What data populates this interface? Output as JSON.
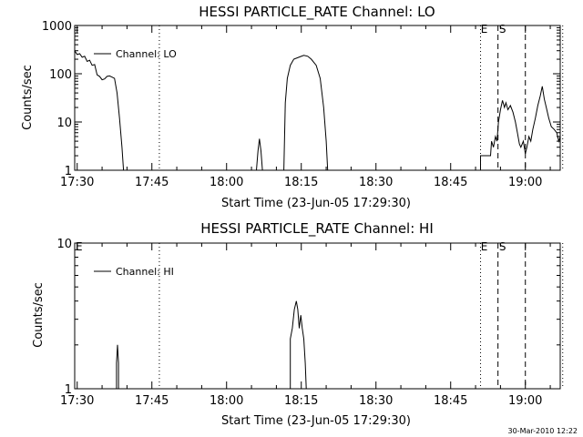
{
  "footer_timestamp": "30-Mar-2010 12:22",
  "chart_data": [
    {
      "type": "line",
      "title": "HESSI PARTICLE_RATE Channel: LO",
      "xlabel": "Start Time (23-Jun-05 17:29:30)",
      "ylabel": "Counts/sec",
      "yscale": "log",
      "ylim": [
        1,
        1000
      ],
      "xlim": [
        -0.5,
        97
      ],
      "x_unit": "minutes after 17:30",
      "x_ticks": [
        {
          "x": 0,
          "label": "17:30"
        },
        {
          "x": 15,
          "label": "17:45"
        },
        {
          "x": 30,
          "label": "18:00"
        },
        {
          "x": 45,
          "label": "18:15"
        },
        {
          "x": 60,
          "label": "18:30"
        },
        {
          "x": 75,
          "label": "18:45"
        },
        {
          "x": 90,
          "label": "19:00"
        }
      ],
      "y_ticks": [
        {
          "y": 1,
          "label": "1"
        },
        {
          "y": 10,
          "label": "10"
        },
        {
          "y": 100,
          "label": "100"
        },
        {
          "y": 1000,
          "label": "1000"
        }
      ],
      "legend": {
        "label": "Channel: LO",
        "position": "top-left"
      },
      "markers": [
        {
          "x": 81,
          "label": "E",
          "style": "dotted"
        },
        {
          "x": 84.5,
          "label": "S",
          "style": "dashed"
        },
        {
          "x": 90,
          "label": "",
          "style": "dashed"
        },
        {
          "x": 97.5,
          "label": "",
          "style": "dotted"
        },
        {
          "x": 16.5,
          "label": "",
          "style": "dotted"
        }
      ],
      "series": [
        {
          "name": "Channel: LO",
          "segments": [
            [
              [
                -0.5,
                300
              ],
              [
                0,
                250
              ],
              [
                0.5,
                260
              ],
              [
                1,
                220
              ],
              [
                1.5,
                230
              ],
              [
                2,
                180
              ],
              [
                2.5,
                190
              ],
              [
                3,
                150
              ],
              [
                3.5,
                155
              ],
              [
                4,
                95
              ],
              [
                4.5,
                88
              ],
              [
                5,
                75
              ],
              [
                5.5,
                78
              ],
              [
                6,
                88
              ],
              [
                6.5,
                90
              ],
              [
                7,
                85
              ],
              [
                7.5,
                80
              ],
              [
                8,
                40
              ],
              [
                8.5,
                12
              ],
              [
                9,
                3
              ],
              [
                9.3,
                1
              ]
            ],
            [
              [
                36,
                1
              ],
              [
                36.3,
                2.5
              ],
              [
                36.6,
                4.5
              ],
              [
                36.9,
                2.5
              ],
              [
                37.2,
                1
              ]
            ],
            [
              [
                41.5,
                1
              ],
              [
                41.8,
                25
              ],
              [
                42.2,
                80
              ],
              [
                42.8,
                150
              ],
              [
                43.5,
                200
              ],
              [
                44.5,
                220
              ],
              [
                45.5,
                240
              ],
              [
                46.3,
                230
              ],
              [
                47,
                200
              ],
              [
                48,
                150
              ],
              [
                48.8,
                80
              ],
              [
                49.5,
                20
              ],
              [
                50,
                4
              ],
              [
                50.3,
                1
              ]
            ],
            [
              [
                81,
                1
              ],
              [
                81,
                2
              ],
              [
                83,
                2
              ],
              [
                83.2,
                4
              ],
              [
                83.6,
                3
              ],
              [
                84,
                5
              ],
              [
                84.3,
                4
              ],
              [
                84.6,
                10
              ],
              [
                85,
                18
              ],
              [
                85.4,
                28
              ],
              [
                85.8,
                20
              ],
              [
                86.1,
                25
              ],
              [
                86.5,
                18
              ],
              [
                87,
                22
              ],
              [
                87.5,
                16
              ],
              [
                88,
                10
              ],
              [
                88.4,
                6
              ],
              [
                88.8,
                3.5
              ],
              [
                89.1,
                3
              ],
              [
                89.6,
                4
              ],
              [
                90,
                2.2
              ],
              [
                90.3,
                3
              ],
              [
                90.7,
                5
              ],
              [
                91.1,
                4
              ],
              [
                91.5,
                7
              ],
              [
                92,
                12
              ],
              [
                92.5,
                22
              ],
              [
                93,
                35
              ],
              [
                93.4,
                55
              ],
              [
                93.8,
                30
              ],
              [
                94.2,
                20
              ],
              [
                94.7,
                12
              ],
              [
                95.2,
                8
              ],
              [
                95.8,
                7
              ],
              [
                96.3,
                6
              ],
              [
                96.7,
                4
              ],
              [
                97,
                5
              ]
            ]
          ]
        }
      ]
    },
    {
      "type": "line",
      "title": "HESSI PARTICLE_RATE Channel: HI",
      "xlabel": "Start Time (23-Jun-05 17:29:30)",
      "ylabel": "Counts/sec",
      "yscale": "log",
      "ylim": [
        1,
        10
      ],
      "xlim": [
        -0.5,
        97
      ],
      "x_unit": "minutes after 17:30",
      "x_ticks": [
        {
          "x": 0,
          "label": "17:30"
        },
        {
          "x": 15,
          "label": "17:45"
        },
        {
          "x": 30,
          "label": "18:00"
        },
        {
          "x": 45,
          "label": "18:15"
        },
        {
          "x": 60,
          "label": "18:30"
        },
        {
          "x": 75,
          "label": "18:45"
        },
        {
          "x": 90,
          "label": "19:00"
        }
      ],
      "y_ticks": [
        {
          "y": 1,
          "label": "1"
        },
        {
          "y": 10,
          "label": "10"
        }
      ],
      "legend": {
        "label": "Channel: HI",
        "position": "top-left"
      },
      "markers": [
        {
          "x": -0.5,
          "label": "E",
          "style": "none"
        },
        {
          "x": 81,
          "label": "E",
          "style": "dotted"
        },
        {
          "x": 84.5,
          "label": "S",
          "style": "dashed"
        },
        {
          "x": 90,
          "label": "",
          "style": "dashed"
        },
        {
          "x": 97.5,
          "label": "",
          "style": "dotted"
        },
        {
          "x": 16.5,
          "label": "",
          "style": "dotted"
        }
      ],
      "series": [
        {
          "name": "Channel: HI",
          "segments": [
            [
              [
                7.9,
                1
              ],
              [
                7.9,
                1.5
              ],
              [
                8.1,
                2
              ],
              [
                8.3,
                1.5
              ],
              [
                8.3,
                1
              ]
            ],
            [
              [
                42.8,
                1
              ],
              [
                42.8,
                2.2
              ],
              [
                43.2,
                2.6
              ],
              [
                43.6,
                3.5
              ],
              [
                44,
                4
              ],
              [
                44.3,
                3.5
              ],
              [
                44.6,
                2.6
              ],
              [
                44.9,
                3.2
              ],
              [
                45.2,
                2.6
              ],
              [
                45.5,
                2.2
              ],
              [
                45.8,
                1.5
              ],
              [
                46,
                1
              ]
            ]
          ]
        }
      ]
    }
  ]
}
